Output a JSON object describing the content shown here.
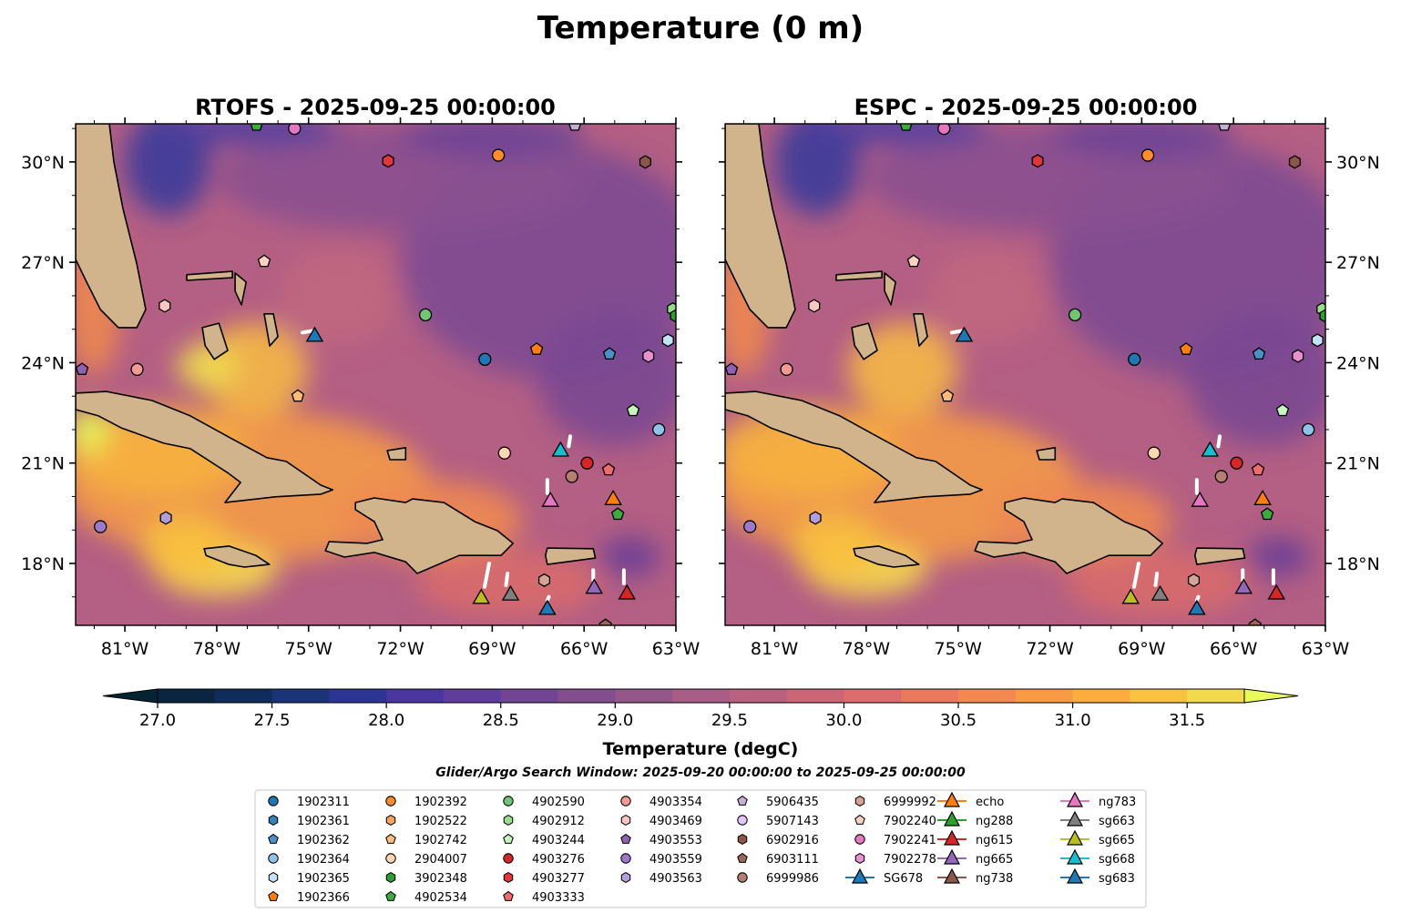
{
  "title": "Temperature (0 m)",
  "panels": [
    {
      "title": "RTOFS - 2025-09-25 00:00:00",
      "model": "RTOFS"
    },
    {
      "title": "ESPC - 2025-09-25 00:00:00",
      "model": "ESPC"
    }
  ],
  "map_extent": {
    "lon": [
      -82.61,
      -63.0
    ],
    "lat": [
      16.15,
      31.14
    ]
  },
  "lon_ticks": [
    {
      "value": -81,
      "label": "81°W"
    },
    {
      "value": -78,
      "label": "78°W"
    },
    {
      "value": -75,
      "label": "75°W"
    },
    {
      "value": -72,
      "label": "72°W"
    },
    {
      "value": -69,
      "label": "69°W"
    },
    {
      "value": -66,
      "label": "66°W"
    },
    {
      "value": -63,
      "label": "63°W"
    }
  ],
  "lat_ticks": [
    {
      "value": 18,
      "label": "18°N"
    },
    {
      "value": 21,
      "label": "21°N"
    },
    {
      "value": 24,
      "label": "24°N"
    },
    {
      "value": 27,
      "label": "27°N"
    },
    {
      "value": 30,
      "label": "30°N"
    }
  ],
  "colors": {
    "land": "#d2b48c",
    "coast": "#000000",
    "ocean_base": "#b45f84"
  },
  "colorbar": {
    "label": "Temperature (degC)",
    "min": 27.0,
    "step": 0.25,
    "under": "#042333",
    "over": "#e8fa5b",
    "colors": [
      "#0b2540",
      "#0f2d5a",
      "#1a3477",
      "#2c3494",
      "#4a36a0",
      "#5f3d9c",
      "#714594",
      "#834e8e",
      "#95568a",
      "#a85d87",
      "#ba6180",
      "#cc6677",
      "#dd6d6c",
      "#ea795e",
      "#f38850",
      "#f99a45",
      "#fcad3d",
      "#f9c240",
      "#f3d94c"
    ],
    "ticks": [
      {
        "value": 27.0,
        "label": "27.0"
      },
      {
        "value": 27.5,
        "label": "27.5"
      },
      {
        "value": 28.0,
        "label": "28.0"
      },
      {
        "value": 28.5,
        "label": "28.5"
      },
      {
        "value": 29.0,
        "label": "29.0"
      },
      {
        "value": 29.5,
        "label": "29.5"
      },
      {
        "value": 30.0,
        "label": "30.0"
      },
      {
        "value": 30.5,
        "label": "30.5"
      },
      {
        "value": 31.0,
        "label": "31.0"
      },
      {
        "value": 31.5,
        "label": "31.5"
      }
    ]
  },
  "search_window": "Glider/Argo Search Window: 2025-09-20 00:00:00 to 2025-09-25 00:00:00",
  "legend": [
    {
      "id": "1902311",
      "marker": "circle",
      "color": "#1f77b4"
    },
    {
      "id": "1902361",
      "marker": "hexagon",
      "color": "#3182bd"
    },
    {
      "id": "1902362",
      "marker": "pentagon",
      "color": "#4b91c8"
    },
    {
      "id": "1902364",
      "marker": "circle",
      "color": "#8fc3ea"
    },
    {
      "id": "1902365",
      "marker": "hexagon",
      "color": "#c6e1f5"
    },
    {
      "id": "1902366",
      "marker": "pentagon",
      "color": "#ff7f0e"
    },
    {
      "id": "1902392",
      "marker": "circle",
      "color": "#ff8c2a"
    },
    {
      "id": "1902522",
      "marker": "hexagon",
      "color": "#ffa45e"
    },
    {
      "id": "1902742",
      "marker": "pentagon",
      "color": "#ffbb78"
    },
    {
      "id": "2904007",
      "marker": "circle",
      "color": "#ffd8b0"
    },
    {
      "id": "3902348",
      "marker": "hexagon",
      "color": "#2ca02c"
    },
    {
      "id": "4902534",
      "marker": "pentagon",
      "color": "#3caa3c"
    },
    {
      "id": "4902590",
      "marker": "circle",
      "color": "#74c476"
    },
    {
      "id": "4902912",
      "marker": "hexagon",
      "color": "#98df8a"
    },
    {
      "id": "4903244",
      "marker": "pentagon",
      "color": "#c7f5c0"
    },
    {
      "id": "4903276",
      "marker": "circle",
      "color": "#d62728"
    },
    {
      "id": "4903277",
      "marker": "hexagon",
      "color": "#e0383a"
    },
    {
      "id": "4903333",
      "marker": "pentagon",
      "color": "#f06b6b"
    },
    {
      "id": "4903354",
      "marker": "circle",
      "color": "#f19a96"
    },
    {
      "id": "4903469",
      "marker": "hexagon",
      "color": "#ffc5c5"
    },
    {
      "id": "4903553",
      "marker": "pentagon",
      "color": "#8e62b0"
    },
    {
      "id": "4903559",
      "marker": "circle",
      "color": "#9e79c9"
    },
    {
      "id": "4903563",
      "marker": "hexagon",
      "color": "#b39ddb"
    },
    {
      "id": "5906435",
      "marker": "pentagon",
      "color": "#c5b0d5"
    },
    {
      "id": "5907143",
      "marker": "circle",
      "color": "#e1c7f7"
    },
    {
      "id": "6902916",
      "marker": "hexagon",
      "color": "#8c564b"
    },
    {
      "id": "6903111",
      "marker": "pentagon",
      "color": "#9b665b"
    },
    {
      "id": "6999986",
      "marker": "circle",
      "color": "#b67e70"
    },
    {
      "id": "6999992",
      "marker": "hexagon",
      "color": "#d4a595"
    },
    {
      "id": "7902240",
      "marker": "pentagon",
      "color": "#f9d0c4"
    },
    {
      "id": "7902241",
      "marker": "circle",
      "color": "#e377c2"
    },
    {
      "id": "7902278",
      "marker": "hexagon",
      "color": "#ea90d0"
    },
    {
      "id": "SG678",
      "marker": "triangle",
      "color": "#1f77b4"
    },
    {
      "id": "echo",
      "marker": "triangle",
      "color": "#ff7f0e"
    },
    {
      "id": "ng288",
      "marker": "triangle",
      "color": "#2ca02c"
    },
    {
      "id": "ng615",
      "marker": "triangle",
      "color": "#d62728"
    },
    {
      "id": "ng665",
      "marker": "triangle",
      "color": "#9467bd"
    },
    {
      "id": "ng738",
      "marker": "triangle",
      "color": "#8c564b"
    },
    {
      "id": "ng783",
      "marker": "triangle",
      "color": "#e377c2"
    },
    {
      "id": "sg663",
      "marker": "triangle",
      "color": "#7f7f7f"
    },
    {
      "id": "sg665",
      "marker": "triangle",
      "color": "#bcbd22"
    },
    {
      "id": "sg668",
      "marker": "triangle",
      "color": "#17becf"
    },
    {
      "id": "sg683",
      "marker": "triangle",
      "color": "#1f77b4"
    }
  ],
  "observations": [
    {
      "id": "1902311",
      "lon": -69.24,
      "lat": 24.1
    },
    {
      "id": "1902392",
      "lon": -68.8,
      "lat": 30.2
    },
    {
      "id": "4902590",
      "lon": -71.18,
      "lat": 25.43
    },
    {
      "id": "4903277",
      "lon": -72.4,
      "lat": 30.03
    },
    {
      "id": "6902916",
      "lon": -64.0,
      "lat": 30.0
    },
    {
      "id": "7902241",
      "lon": -75.46,
      "lat": 31.0
    },
    {
      "id": "4902534",
      "lon": -76.7,
      "lat": 31.1
    },
    {
      "id": "5906435",
      "lon": -66.3,
      "lat": 31.1
    },
    {
      "id": "7902240",
      "lon": -76.45,
      "lat": 27.03
    },
    {
      "id": "4903469",
      "lon": -79.7,
      "lat": 25.7
    },
    {
      "id": "1902366",
      "lon": -67.55,
      "lat": 24.4
    },
    {
      "id": "1902362",
      "lon": -65.17,
      "lat": 24.26
    },
    {
      "id": "7902278",
      "lon": -63.9,
      "lat": 24.2
    },
    {
      "id": "1902365",
      "lon": -63.26,
      "lat": 24.67
    },
    {
      "id": "4902912",
      "lon": -63.1,
      "lat": 25.6
    },
    {
      "id": "3902348",
      "lon": -63.0,
      "lat": 25.4
    },
    {
      "id": "4903553",
      "lon": -82.4,
      "lat": 23.8
    },
    {
      "id": "4903354",
      "lon": -80.6,
      "lat": 23.8
    },
    {
      "id": "1902742",
      "lon": -75.35,
      "lat": 23.0
    },
    {
      "id": "4903244",
      "lon": -64.4,
      "lat": 22.57
    },
    {
      "id": "1902364",
      "lon": -63.56,
      "lat": 22.0
    },
    {
      "id": "2904007",
      "lon": -68.6,
      "lat": 21.3
    },
    {
      "id": "SG678",
      "lon": -74.8,
      "lat": 24.83
    },
    {
      "id": "sg668",
      "lon": -66.77,
      "lat": 21.4
    },
    {
      "id": "4903276",
      "lon": -65.9,
      "lat": 21.0
    },
    {
      "id": "6999986",
      "lon": -66.4,
      "lat": 20.6
    },
    {
      "id": "4903333",
      "lon": -65.2,
      "lat": 20.8
    },
    {
      "id": "ng783",
      "lon": -67.1,
      "lat": 19.9
    },
    {
      "id": "echo",
      "lon": -65.05,
      "lat": 19.95
    },
    {
      "id": "4902534",
      "lon": -64.9,
      "lat": 19.47
    },
    {
      "id": "4903559",
      "lon": -81.8,
      "lat": 19.1
    },
    {
      "id": "4903563",
      "lon": -79.66,
      "lat": 19.36
    },
    {
      "id": "sg665",
      "lon": -69.36,
      "lat": 17.0
    },
    {
      "id": "sg663",
      "lon": -68.4,
      "lat": 17.1
    },
    {
      "id": "6999992",
      "lon": -67.3,
      "lat": 17.5
    },
    {
      "id": "sg683",
      "lon": -67.2,
      "lat": 16.67
    },
    {
      "id": "ng665",
      "lon": -65.67,
      "lat": 17.3
    },
    {
      "id": "ng615",
      "lon": -64.6,
      "lat": 17.13
    },
    {
      "id": "6903111",
      "lon": -65.3,
      "lat": 16.15
    }
  ],
  "land": [
    {
      "name": "florida",
      "coords": [
        [
          -82.61,
          31.14
        ],
        [
          -81.51,
          31.14
        ],
        [
          -81.36,
          30.0
        ],
        [
          -81.06,
          28.59
        ],
        [
          -80.61,
          26.95
        ],
        [
          -80.32,
          25.59
        ],
        [
          -80.61,
          25.05
        ],
        [
          -81.21,
          25.05
        ],
        [
          -81.8,
          25.59
        ],
        [
          -82.25,
          26.41
        ],
        [
          -82.61,
          27.09
        ]
      ]
    },
    {
      "name": "cuba",
      "coords": [
        [
          -82.61,
          23.09
        ],
        [
          -81.6,
          23.14
        ],
        [
          -80.11,
          22.87
        ],
        [
          -78.86,
          22.41
        ],
        [
          -77.61,
          21.78
        ],
        [
          -76.36,
          21.16
        ],
        [
          -75.73,
          21.05
        ],
        [
          -74.6,
          20.34
        ],
        [
          -74.21,
          20.2
        ],
        [
          -74.6,
          20.07
        ],
        [
          -76.09,
          19.99
        ],
        [
          -77.73,
          19.82
        ],
        [
          -77.22,
          20.42
        ],
        [
          -77.61,
          20.69
        ],
        [
          -78.86,
          21.43
        ],
        [
          -79.72,
          21.59
        ],
        [
          -81.12,
          22.05
        ],
        [
          -81.86,
          22.41
        ],
        [
          -82.61,
          22.6
        ]
      ]
    },
    {
      "name": "hispaniola",
      "coords": [
        [
          -73.47,
          19.82
        ],
        [
          -72.85,
          19.96
        ],
        [
          -71.83,
          19.82
        ],
        [
          -71.6,
          19.93
        ],
        [
          -70.58,
          19.82
        ],
        [
          -69.57,
          19.25
        ],
        [
          -68.83,
          18.98
        ],
        [
          -68.32,
          18.6
        ],
        [
          -68.71,
          18.24
        ],
        [
          -70.08,
          18.24
        ],
        [
          -71.45,
          17.7
        ],
        [
          -71.83,
          18.05
        ],
        [
          -72.85,
          18.33
        ],
        [
          -73.83,
          18.19
        ],
        [
          -74.45,
          18.38
        ],
        [
          -74.33,
          18.65
        ],
        [
          -73.08,
          18.6
        ],
        [
          -72.58,
          18.71
        ],
        [
          -72.85,
          19.25
        ],
        [
          -73.47,
          19.61
        ]
      ]
    },
    {
      "name": "jamaica",
      "coords": [
        [
          -78.41,
          18.44
        ],
        [
          -77.6,
          18.52
        ],
        [
          -76.72,
          18.24
        ],
        [
          -76.28,
          17.97
        ],
        [
          -77.1,
          17.89
        ],
        [
          -77.6,
          17.97
        ],
        [
          -78.35,
          18.24
        ]
      ]
    },
    {
      "name": "puerto-rico",
      "coords": [
        [
          -67.2,
          18.46
        ],
        [
          -65.7,
          18.44
        ],
        [
          -65.63,
          18.16
        ],
        [
          -67.2,
          17.97
        ],
        [
          -67.26,
          18.24
        ]
      ]
    },
    {
      "name": "andros",
      "coords": [
        [
          -78.47,
          25.05
        ],
        [
          -77.93,
          25.18
        ],
        [
          -77.64,
          24.37
        ],
        [
          -78.08,
          24.1
        ],
        [
          -78.38,
          24.51
        ]
      ]
    },
    {
      "name": "grand-bahama",
      "coords": [
        [
          -78.98,
          26.63
        ],
        [
          -77.49,
          26.73
        ],
        [
          -77.49,
          26.54
        ],
        [
          -78.98,
          26.46
        ]
      ]
    },
    {
      "name": "abaco",
      "coords": [
        [
          -77.4,
          26.68
        ],
        [
          -77.04,
          26.41
        ],
        [
          -77.19,
          25.73
        ],
        [
          -77.4,
          26.14
        ]
      ]
    },
    {
      "name": "eleuthera",
      "coords": [
        [
          -76.45,
          25.46
        ],
        [
          -76.15,
          25.46
        ],
        [
          -76.0,
          24.78
        ],
        [
          -76.27,
          24.5
        ]
      ]
    },
    {
      "name": "great-inagua",
      "coords": [
        [
          -72.43,
          21.37
        ],
        [
          -71.83,
          21.46
        ],
        [
          -71.83,
          21.1
        ],
        [
          -72.34,
          21.1
        ]
      ]
    }
  ]
}
